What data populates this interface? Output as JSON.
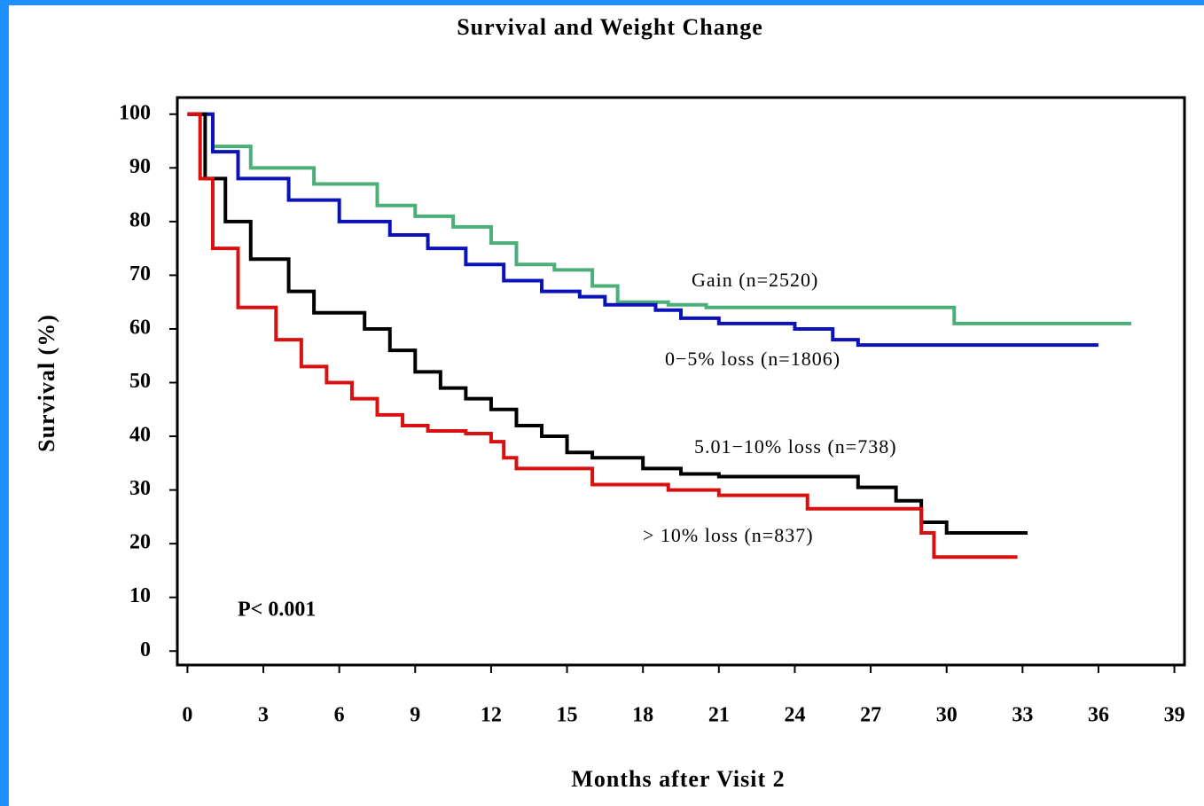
{
  "chart_data": {
    "type": "step-line",
    "title": "Survival and Weight Change",
    "x_label": "Months after Visit 2",
    "y_label": "Survival (%)",
    "annotation": "P< 0.001",
    "xlim": [
      -0.4,
      39.4
    ],
    "ylim": [
      -2.6,
      103.1
    ],
    "xticks": [
      0,
      3,
      6,
      9,
      12,
      15,
      18,
      21,
      24,
      27,
      30,
      33,
      36,
      39
    ],
    "yticks": [
      0,
      10,
      20,
      30,
      40,
      50,
      60,
      70,
      80,
      90,
      100
    ],
    "series": [
      {
        "name": "Gain (n=2520)",
        "color": "#4caf7a",
        "x": [
          0,
          1,
          2.5,
          5,
          7.5,
          9,
          10.5,
          12,
          13,
          14.5,
          16,
          17,
          19,
          20.5,
          30.3,
          37.3
        ],
        "values": [
          100,
          94,
          90,
          87,
          83,
          81,
          79,
          76,
          72,
          71,
          68,
          65,
          64.5,
          64,
          61,
          61
        ]
      },
      {
        "name": "0−5% loss (n=1806)",
        "color": "#0a12b8",
        "x": [
          0,
          1,
          2,
          4,
          6,
          8,
          9.5,
          11,
          12.5,
          14,
          15.5,
          16.5,
          18.5,
          19.5,
          21,
          24,
          25.5,
          26.5,
          36
        ],
        "values": [
          100,
          93,
          88,
          84,
          80,
          77.5,
          75,
          72,
          69,
          67,
          66,
          64.5,
          63.5,
          62,
          61,
          60,
          58,
          57,
          57
        ]
      },
      {
        "name": "5.01−10% loss (n=738)",
        "color": "#000000",
        "x": [
          0,
          0.7,
          1.5,
          2.5,
          4,
          5,
          7,
          8,
          9,
          10,
          11,
          12,
          13,
          14,
          15,
          16,
          18,
          19.5,
          21,
          26.5,
          28,
          29,
          30,
          33.2
        ],
        "values": [
          100,
          88,
          80,
          73,
          67,
          63,
          60,
          56,
          52,
          49,
          47,
          45,
          42,
          40,
          37,
          36,
          34,
          33,
          32.5,
          30.5,
          28,
          24,
          22,
          22
        ]
      },
      {
        "name": "> 10% loss (n=837)",
        "color": "#d91010",
        "x": [
          0,
          0.5,
          1,
          2,
          3.5,
          4.5,
          5.5,
          6.5,
          7.5,
          8.5,
          9.5,
          11,
          12,
          12.5,
          13,
          16,
          19,
          21,
          24.5,
          29,
          29.5,
          32.8
        ],
        "values": [
          100,
          88,
          75,
          64,
          58,
          53,
          50,
          47,
          44,
          42,
          41,
          40.5,
          39,
          36,
          34,
          31,
          30,
          29,
          26.5,
          22,
          17.5,
          17.5
        ]
      }
    ]
  }
}
